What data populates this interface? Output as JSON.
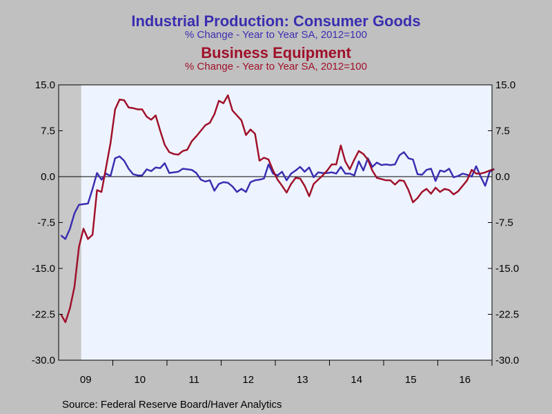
{
  "header": {
    "title1": "Industrial Production: Consumer Goods",
    "subtitle1": "% Change - Year to Year    SA, 2012=100",
    "title2": "Business Equipment",
    "subtitle2": "% Change - Year to Year    SA, 2012=100"
  },
  "footer": {
    "source": "Source:  Federal Reserve Board/Haver Analytics"
  },
  "colors": {
    "consumer": "#3a2eb0",
    "business": "#a0102a",
    "plot_bg": "#eef4ff",
    "recession": "#c8c8c8"
  },
  "chart_data": {
    "type": "line",
    "title": "Industrial Production: Consumer Goods / Business Equipment",
    "ylim": [
      -30,
      15
    ],
    "y_ticks": [
      15,
      7.5,
      0,
      -7.5,
      -15,
      -22.5,
      -30
    ],
    "y_tick_labels": [
      "15.0",
      "7.5",
      "0.0",
      "-7.5",
      "-15.0",
      "-22.5",
      "-30.0"
    ],
    "x_start": "2009-01",
    "x_end": "2016-12",
    "x_tick_labels": [
      "09",
      "10",
      "11",
      "12",
      "13",
      "14",
      "15",
      "16"
    ],
    "recession_shading": [
      "2009-01",
      "2009-06"
    ],
    "grid": false,
    "series": [
      {
        "name": "Consumer Goods",
        "color": "#3a2eb0",
        "values": [
          -9.6,
          -10.2,
          -8.5,
          -6.0,
          -4.6,
          -4.5,
          -4.4,
          -2.0,
          0.6,
          -0.5,
          0.5,
          0.1,
          3.0,
          3.3,
          2.6,
          1.3,
          0.4,
          0.2,
          0.2,
          1.2,
          0.9,
          1.5,
          1.4,
          2.2,
          0.6,
          0.7,
          0.8,
          1.3,
          1.2,
          1.1,
          0.6,
          -0.5,
          -0.8,
          -0.6,
          -2.3,
          -1.2,
          -0.9,
          -1.0,
          -1.6,
          -2.5,
          -2.0,
          -2.5,
          -0.9,
          -0.6,
          -0.5,
          -0.3,
          2.0,
          0.5,
          0.2,
          0.8,
          -0.6,
          0.5,
          1.0,
          1.6,
          0.8,
          1.5,
          -0.1,
          0.7,
          0.6,
          0.6,
          0.7,
          0.5,
          1.6,
          0.5,
          0.5,
          0.2,
          2.5,
          1.0,
          3.0,
          1.6,
          2.3,
          1.9,
          2.0,
          1.9,
          2.0,
          3.5,
          4.0,
          3.0,
          2.8,
          0.4,
          0.3,
          1.1,
          1.3,
          -0.7,
          1.0,
          0.8,
          1.3,
          -0.1,
          0.1,
          0.5,
          0.3,
          0.0,
          1.7,
          0.0,
          -1.5,
          0.8,
          1.3
        ]
      },
      {
        "name": "Business Equipment",
        "color": "#a0102a",
        "values": [
          -22.5,
          -23.8,
          -21.5,
          -18.0,
          -11.5,
          -8.5,
          -10.2,
          -9.5,
          -2.2,
          -2.5,
          1.5,
          5.5,
          11.0,
          12.6,
          12.5,
          11.3,
          11.2,
          11.0,
          11.0,
          9.8,
          9.3,
          10.0,
          7.5,
          5.2,
          4.0,
          3.7,
          3.6,
          4.2,
          4.4,
          5.8,
          6.6,
          7.5,
          8.4,
          8.8,
          10.2,
          12.4,
          12.0,
          13.3,
          10.8,
          10.0,
          9.2,
          6.8,
          7.7,
          7.0,
          2.6,
          3.1,
          2.8,
          1.0,
          -0.5,
          -1.5,
          -2.6,
          -1.2,
          -0.2,
          -0.3,
          -1.5,
          -3.2,
          -1.2,
          -0.5,
          0.2,
          1.0,
          2.0,
          2.0,
          5.1,
          2.5,
          1.2,
          2.8,
          4.2,
          3.7,
          2.8,
          1.0,
          -0.2,
          -0.4,
          -0.6,
          -0.6,
          -1.3,
          -0.6,
          -0.7,
          -2.2,
          -4.2,
          -3.5,
          -2.5,
          -2.0,
          -2.8,
          -1.8,
          -2.5,
          -2.0,
          -2.2,
          -2.9,
          -2.4,
          -1.5,
          -0.6,
          1.1,
          0.5,
          0.5,
          0.7,
          1.0,
          1.2
        ]
      }
    ]
  }
}
